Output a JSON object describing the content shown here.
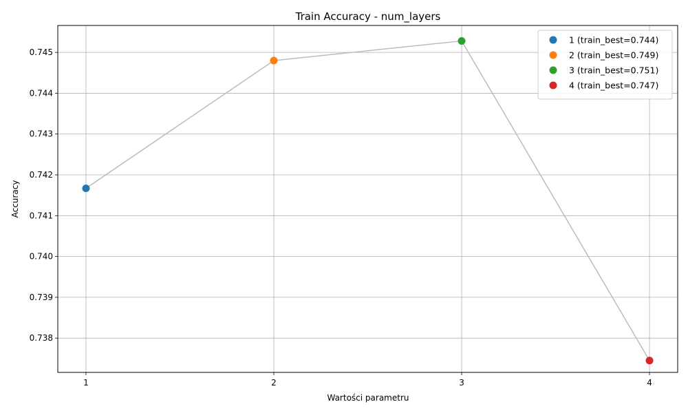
{
  "chart_data": {
    "type": "line",
    "title": "Train Accuracy - num_layers",
    "xlabel": "Wartości parametru",
    "ylabel": "Accuracy",
    "x": [
      1,
      2,
      3,
      4
    ],
    "values": [
      0.74167,
      0.7448,
      0.74528,
      0.73745
    ],
    "point_colors": [
      "#1f77b4",
      "#ff7f0e",
      "#2ca02c",
      "#d62728"
    ],
    "line_color": "#bbbbbb",
    "grid": true,
    "xticks": [
      "1",
      "2",
      "3",
      "4"
    ],
    "yticks": [
      "0.738",
      "0.739",
      "0.740",
      "0.741",
      "0.742",
      "0.743",
      "0.744",
      "0.745"
    ],
    "xlim": [
      0.85,
      4.15
    ],
    "ylim": [
      0.73716,
      0.74566
    ],
    "legend": {
      "placement": "top-right",
      "entries": [
        "1 (train_best=0.744)",
        "2 (train_best=0.749)",
        "3 (train_best=0.751)",
        "4 (train_best=0.747)"
      ]
    }
  }
}
